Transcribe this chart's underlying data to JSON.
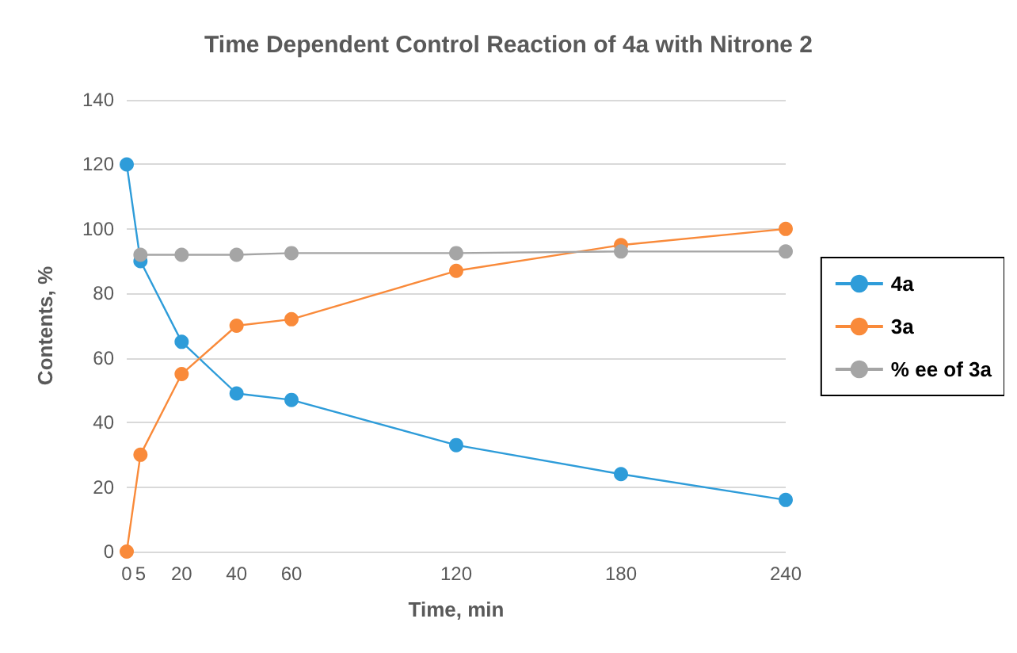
{
  "chart_data": {
    "type": "line",
    "title": "Time Dependent Control Reaction of 4a with Nitrone 2",
    "xlabel": "Time, min",
    "ylabel": "Contents, %",
    "xlim": [
      0,
      240
    ],
    "xticks": [
      0,
      5,
      20,
      40,
      60,
      120,
      180,
      240
    ],
    "ylim": [
      0,
      140
    ],
    "yticks": [
      0,
      20,
      40,
      60,
      80,
      100,
      120,
      140
    ],
    "grid": "y",
    "legend": "right",
    "marker": "circle",
    "line_style": "solid",
    "series": [
      {
        "name": "4a",
        "color": "#2e9cd9",
        "x": [
          0,
          5,
          20,
          40,
          60,
          120,
          180,
          240
        ],
        "values": [
          120,
          90,
          65,
          49,
          47,
          33,
          24,
          16
        ]
      },
      {
        "name": "3a",
        "color": "#f98a3a",
        "x": [
          0,
          5,
          20,
          40,
          60,
          120,
          180,
          240
        ],
        "values": [
          0,
          30,
          55,
          70,
          72,
          87,
          95,
          100
        ]
      },
      {
        "name": "% ee of 3a",
        "color": "#a5a5a5",
        "x": [
          5,
          20,
          40,
          60,
          120,
          180,
          240
        ],
        "values": [
          92,
          92,
          92,
          92.5,
          92.5,
          93,
          93
        ]
      }
    ]
  }
}
